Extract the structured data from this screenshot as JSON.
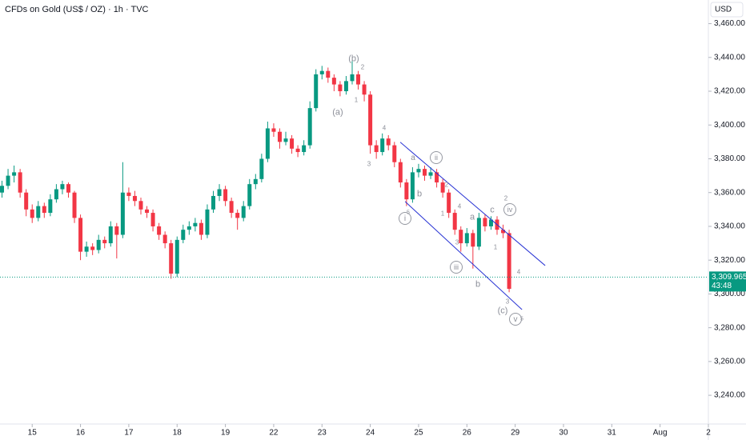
{
  "chart_data": {
    "type": "candlestick",
    "title": "CFDs on Gold (US$ / OZ) · 1h · TVC",
    "currency": "USD",
    "up_color": "#089981",
    "down_color": "#f23645",
    "grid": false,
    "xlim": [
      0,
      352
    ],
    "ylim": [
      3223,
      3474
    ],
    "xticks": [
      {
        "value": 16,
        "label": "15"
      },
      {
        "value": 40,
        "label": "16"
      },
      {
        "value": 64,
        "label": "17"
      },
      {
        "value": 88,
        "label": "18"
      },
      {
        "value": 112,
        "label": "19"
      },
      {
        "value": 136,
        "label": "22"
      },
      {
        "value": 160,
        "label": "23"
      },
      {
        "value": 184,
        "label": "24"
      },
      {
        "value": 208,
        "label": "25"
      },
      {
        "value": 232,
        "label": "26"
      },
      {
        "value": 256,
        "label": "29"
      },
      {
        "value": 280,
        "label": "30"
      },
      {
        "value": 304,
        "label": "31"
      },
      {
        "value": 328,
        "label": "Aug"
      },
      {
        "value": 352,
        "label": "2"
      }
    ],
    "yticks": [
      {
        "value": 3460,
        "label": "3,460.00"
      },
      {
        "value": 3440,
        "label": "3,440.00"
      },
      {
        "value": 3420,
        "label": "3,420.00"
      },
      {
        "value": 3400,
        "label": "3,400.00"
      },
      {
        "value": 3380,
        "label": "3,380.00"
      },
      {
        "value": 3360,
        "label": "3,360.00"
      },
      {
        "value": 3340,
        "label": "3,340.00"
      },
      {
        "value": 3320,
        "label": "3,320.00"
      },
      {
        "value": 3300,
        "label": "3,300.00"
      },
      {
        "value": 3280,
        "label": "3,280.00"
      },
      {
        "value": 3260,
        "label": "3,260.00"
      },
      {
        "value": 3240,
        "label": "3,240.00"
      }
    ],
    "x": [
      1,
      4,
      7,
      10,
      13,
      16,
      19,
      22,
      25,
      28,
      31,
      34,
      37,
      40,
      43,
      46,
      49,
      52,
      55,
      58,
      61,
      64,
      67,
      70,
      73,
      76,
      79,
      82,
      85,
      88,
      91,
      94,
      97,
      100,
      103,
      106,
      109,
      112,
      115,
      118,
      121,
      124,
      127,
      130,
      133,
      136,
      139,
      142,
      145,
      148,
      151,
      154,
      157,
      160,
      163,
      166,
      169,
      172,
      175,
      178,
      181,
      184,
      187,
      190,
      193,
      196,
      199,
      202,
      205,
      208,
      211,
      214,
      217,
      220,
      223,
      226,
      229,
      232,
      235,
      238,
      241,
      244,
      247,
      250,
      253
    ],
    "candles": [
      [
        3360,
        3367,
        3357,
        3364
      ],
      [
        3364,
        3374,
        3362,
        3370
      ],
      [
        3370,
        3376,
        3366,
        3372
      ],
      [
        3372,
        3374,
        3357,
        3360
      ],
      [
        3360,
        3362,
        3346,
        3350
      ],
      [
        3350,
        3353,
        3342,
        3345
      ],
      [
        3345,
        3355,
        3343,
        3352
      ],
      [
        3352,
        3354,
        3345,
        3348
      ],
      [
        3348,
        3359,
        3346,
        3356
      ],
      [
        3356,
        3365,
        3354,
        3362
      ],
      [
        3362,
        3367,
        3359,
        3365
      ],
      [
        3365,
        3366,
        3357,
        3360
      ],
      [
        3360,
        3361,
        3342,
        3345
      ],
      [
        3345,
        3347,
        3320,
        3325
      ],
      [
        3325,
        3331,
        3322,
        3328
      ],
      [
        3328,
        3330,
        3323,
        3326
      ],
      [
        3326,
        3335,
        3324,
        3332
      ],
      [
        3332,
        3334,
        3327,
        3330
      ],
      [
        3330,
        3343,
        3328,
        3340
      ],
      [
        3340,
        3342,
        3321,
        3335
      ],
      [
        3335,
        3378,
        3333,
        3360
      ],
      [
        3360,
        3363,
        3355,
        3358
      ],
      [
        3358,
        3361,
        3352,
        3355
      ],
      [
        3355,
        3357,
        3347,
        3350
      ],
      [
        3350,
        3352,
        3345,
        3348
      ],
      [
        3348,
        3350,
        3337,
        3340
      ],
      [
        3340,
        3342,
        3332,
        3335
      ],
      [
        3335,
        3337,
        3327,
        3330
      ],
      [
        3330,
        3332,
        3309,
        3312
      ],
      [
        3312,
        3334,
        3310,
        3332
      ],
      [
        3332,
        3341,
        3330,
        3338
      ],
      [
        3338,
        3343,
        3335,
        3340
      ],
      [
        3340,
        3345,
        3337,
        3342
      ],
      [
        3342,
        3344,
        3332,
        3335
      ],
      [
        3335,
        3353,
        3333,
        3350
      ],
      [
        3350,
        3361,
        3348,
        3358
      ],
      [
        3358,
        3365,
        3355,
        3362
      ],
      [
        3362,
        3364,
        3352,
        3355
      ],
      [
        3355,
        3357,
        3345,
        3348
      ],
      [
        3348,
        3350,
        3338,
        3345
      ],
      [
        3345,
        3355,
        3343,
        3352
      ],
      [
        3352,
        3368,
        3350,
        3365
      ],
      [
        3365,
        3371,
        3362,
        3368
      ],
      [
        3368,
        3383,
        3366,
        3380
      ],
      [
        3380,
        3402,
        3378,
        3398
      ],
      [
        3398,
        3401,
        3393,
        3396
      ],
      [
        3396,
        3398,
        3386,
        3390
      ],
      [
        3390,
        3396,
        3388,
        3392
      ],
      [
        3392,
        3394,
        3383,
        3386
      ],
      [
        3386,
        3388,
        3381,
        3384
      ],
      [
        3384,
        3391,
        3382,
        3388
      ],
      [
        3388,
        3414,
        3386,
        3410
      ],
      [
        3410,
        3433,
        3408,
        3430
      ],
      [
        3430,
        3435,
        3427,
        3432
      ],
      [
        3432,
        3434,
        3425,
        3428
      ],
      [
        3428,
        3430,
        3420,
        3424
      ],
      [
        3424,
        3426,
        3417,
        3420
      ],
      [
        3420,
        3429,
        3418,
        3426
      ],
      [
        3426,
        3438,
        3424,
        3430
      ],
      [
        3430,
        3432,
        3421,
        3424
      ],
      [
        3424,
        3426,
        3414,
        3418
      ],
      [
        3418,
        3420,
        3383,
        3388
      ],
      [
        3388,
        3391,
        3380,
        3384
      ],
      [
        3384,
        3395,
        3382,
        3392
      ],
      [
        3392,
        3394,
        3385,
        3388
      ],
      [
        3388,
        3390,
        3375,
        3378
      ],
      [
        3378,
        3380,
        3363,
        3366
      ],
      [
        3366,
        3368,
        3352,
        3356
      ],
      [
        3356,
        3375,
        3354,
        3372
      ],
      [
        3372,
        3377,
        3369,
        3374
      ],
      [
        3374,
        3376,
        3367,
        3370
      ],
      [
        3370,
        3375,
        3368,
        3372
      ],
      [
        3372,
        3374,
        3363,
        3366
      ],
      [
        3366,
        3368,
        3357,
        3360
      ],
      [
        3360,
        3362,
        3345,
        3348
      ],
      [
        3348,
        3350,
        3335,
        3338
      ],
      [
        3338,
        3340,
        3325,
        3330
      ],
      [
        3330,
        3339,
        3328,
        3336
      ],
      [
        3336,
        3338,
        3315,
        3328
      ],
      [
        3328,
        3348,
        3326,
        3345
      ],
      [
        3345,
        3347,
        3337,
        3340
      ],
      [
        3340,
        3346,
        3338,
        3344
      ],
      [
        3344,
        3346,
        3335,
        3338
      ],
      [
        3338,
        3341,
        3333,
        3336
      ],
      [
        3336,
        3338,
        3301,
        3303
      ]
    ],
    "trendlines": [
      {
        "color": "#2934d4",
        "x": [
          198.9,
          270.9
        ],
        "y": [
          3389.8,
          3316.8
        ]
      },
      {
        "color": "#2934d4",
        "x": [
          201.3,
          259.4
        ],
        "y": [
          3354.7,
          3290.7
        ]
      }
    ],
    "annotations": [
      "(b)",
      "2",
      "1",
      "(a)",
      "4",
      "3",
      "a",
      "ii",
      "b",
      "2",
      "i",
      "5",
      "4",
      "1",
      "a",
      "c",
      "iv",
      "2",
      "3",
      "1",
      "iii",
      "b",
      "4",
      "3",
      "(c)",
      "v",
      "5"
    ],
    "last_price": 3309.965,
    "last_price_label": "3,309.965",
    "countdown": "43:48"
  }
}
